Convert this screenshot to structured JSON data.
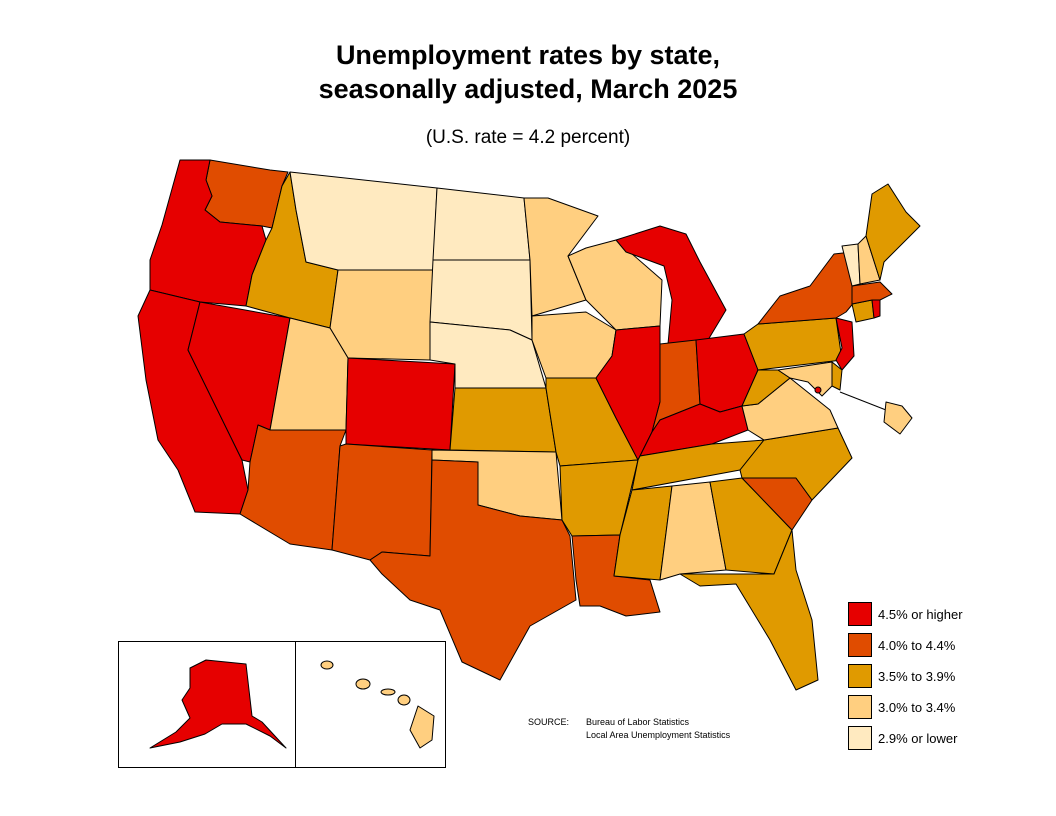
{
  "title_line1": "Unemployment rates by state,",
  "title_line2": "seasonally adjusted, March 2025",
  "subtitle": "(U.S. rate = 4.2 percent)",
  "legend": [
    {
      "label": "4.5% or higher",
      "color": "#e60000"
    },
    {
      "label": "4.0% to 4.4%",
      "color": "#e04c00"
    },
    {
      "label": "3.5% to 3.9%",
      "color": "#e09a00"
    },
    {
      "label": "3.0% to 3.4%",
      "color": "#ffcf80"
    },
    {
      "label": "2.9% or lower",
      "color": "#ffeac0"
    }
  ],
  "source": {
    "key": "SOURCE:",
    "line1": "Bureau of Labor Statistics",
    "line2": "Local Area Unemployment Statistics"
  },
  "map_data": {
    "WA": "4.0-4.4",
    "OR": "4.5+",
    "CA": "4.5+",
    "NV": "4.5+",
    "ID": "3.5-3.9",
    "MT": "<=2.9",
    "WY": "3.0-3.4",
    "UT": "3.0-3.4",
    "AZ": "4.0-4.4",
    "CO": "4.5+",
    "NM": "4.0-4.4",
    "ND": "<=2.9",
    "SD": "<=2.9",
    "NE": "<=2.9",
    "KS": "3.5-3.9",
    "OK": "3.0-3.4",
    "TX": "4.0-4.4",
    "MN": "3.0-3.4",
    "IA": "3.0-3.4",
    "MO": "3.5-3.9",
    "AR": "3.5-3.9",
    "LA": "4.0-4.4",
    "WI": "3.0-3.4",
    "IL": "4.5+",
    "MI": "4.5+",
    "IN": "4.0-4.4",
    "OH": "4.5+",
    "KY": "4.5+",
    "TN": "3.5-3.9",
    "MS": "3.5-3.9",
    "AL": "3.0-3.4",
    "GA": "3.5-3.9",
    "FL": "3.5-3.9",
    "SC": "4.0-4.4",
    "NC": "3.5-3.9",
    "VA": "3.0-3.4",
    "WV": "3.5-3.9",
    "PA": "3.5-3.9",
    "NY": "4.0-4.4",
    "NJ": "4.5+",
    "DE": "3.5-3.9",
    "MD": "3.0-3.4",
    "DC": "4.5+",
    "CT": "3.5-3.9",
    "RI": "4.5+",
    "MA": "4.0-4.4",
    "VT": "<=2.9",
    "NH": "3.0-3.4",
    "ME": "3.5-3.9",
    "AK": "4.5+",
    "HI": "3.0-3.4"
  }
}
